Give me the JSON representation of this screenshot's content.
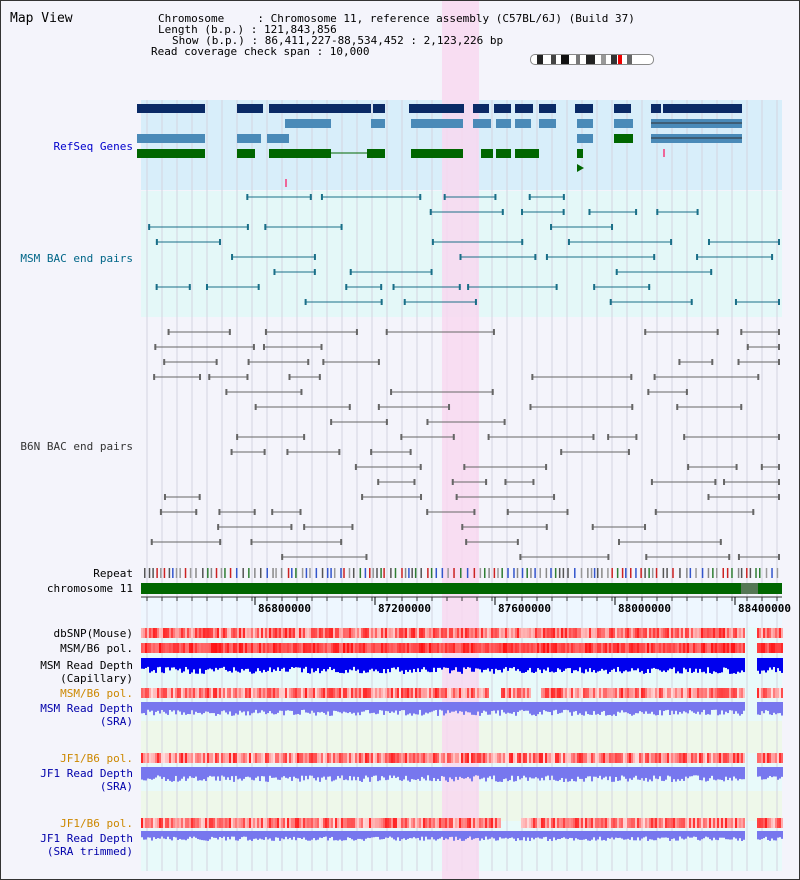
{
  "header": {
    "title": "Map View",
    "info_lines": [
      "Chromosome     : Chromosome 11, reference assembly (C57BL/6J) (Build 37)",
      "Length (b.p.) : 121,843,856",
      "Show (b.p.) : 86,411,227-88,534,452 : 2,123,226 bp",
      "Read coverage check span : 10,000"
    ]
  },
  "tracks": {
    "refseq": "RefSeq Genes",
    "msm_bac": "MSM BAC end pairs",
    "b6n_bac": "B6N BAC end pairs",
    "repeat": "Repeat",
    "chromosome": "chromosome 11",
    "dbsnp": "dbSNP(Mouse)",
    "msm_b6_pol": "MSM/B6 pol.",
    "msm_read_depth_cap_1": "MSM Read Depth",
    "msm_read_depth_cap_2": "(Capillary)",
    "msm_b6_pol_2": "MSM/B6 pol.",
    "msm_read_depth_sra_1": "MSM Read Depth",
    "msm_read_depth_sra_2": "(SRA)",
    "jf1_b6_pol": "JF1/B6 pol.",
    "jf1_read_depth_1": "JF1 Read Depth",
    "jf1_read_depth_2": "(SRA)",
    "jf1_b6_pol_2": "JF1/B6 pol.",
    "jf1_read_depth_tr_1": "JF1 Read Depth",
    "jf1_read_depth_tr_2": "(SRA trimmed)"
  },
  "axis": {
    "ticks": [
      "86800000",
      "87200000",
      "87600000",
      "88000000",
      "88400000"
    ]
  },
  "colors": {
    "label_blue": "#0000cc",
    "label_teal": "#006688",
    "label_orange": "#cc8800",
    "label_red": "#cc0000",
    "highlight": "#f8d8f0",
    "gene_dark": "#0a2a66",
    "gene_mid": "#4a8ab8",
    "gene_green": "#006600",
    "depth_blue": "#0000ee",
    "depth_light": "#7777ee"
  }
}
